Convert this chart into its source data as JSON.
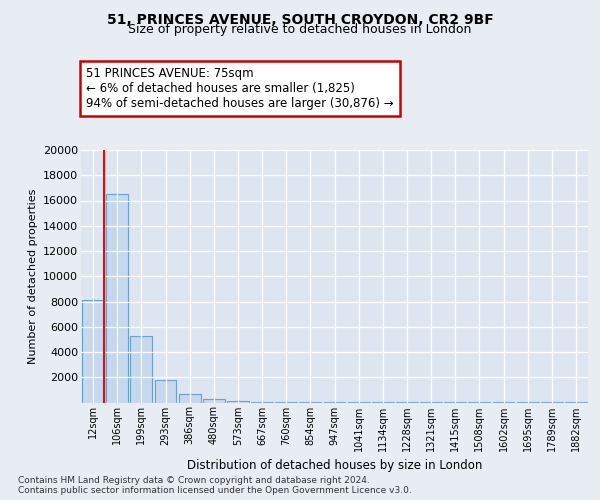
{
  "title1": "51, PRINCES AVENUE, SOUTH CROYDON, CR2 9BF",
  "title2": "Size of property relative to detached houses in London",
  "xlabel": "Distribution of detached houses by size in London",
  "ylabel": "Number of detached properties",
  "categories": [
    "12sqm",
    "106sqm",
    "199sqm",
    "293sqm",
    "386sqm",
    "480sqm",
    "573sqm",
    "667sqm",
    "760sqm",
    "854sqm",
    "947sqm",
    "1041sqm",
    "1134sqm",
    "1228sqm",
    "1321sqm",
    "1415sqm",
    "1508sqm",
    "1602sqm",
    "1695sqm",
    "1789sqm",
    "1882sqm"
  ],
  "values": [
    8100,
    16500,
    5300,
    1750,
    650,
    250,
    130,
    70,
    40,
    25,
    18,
    12,
    9,
    7,
    5,
    4,
    3,
    3,
    2,
    2,
    1
  ],
  "bar_color": "#c5d8ee",
  "bar_edge_color": "#6aa0cd",
  "vline_color": "red",
  "annotation_text": "51 PRINCES AVENUE: 75sqm\n← 6% of detached houses are smaller (1,825)\n94% of semi-detached houses are larger (30,876) →",
  "annotation_box_color": "white",
  "annotation_box_edge": "#cc0000",
  "footer": "Contains HM Land Registry data © Crown copyright and database right 2024.\nContains public sector information licensed under the Open Government Licence v3.0.",
  "ylim": [
    0,
    20000
  ],
  "yticks": [
    0,
    2000,
    4000,
    6000,
    8000,
    10000,
    12000,
    14000,
    16000,
    18000,
    20000
  ],
  "bg_color": "#e8edf3",
  "plot_bg": "#dce5f0",
  "title1_fontsize": 10,
  "title2_fontsize": 9
}
